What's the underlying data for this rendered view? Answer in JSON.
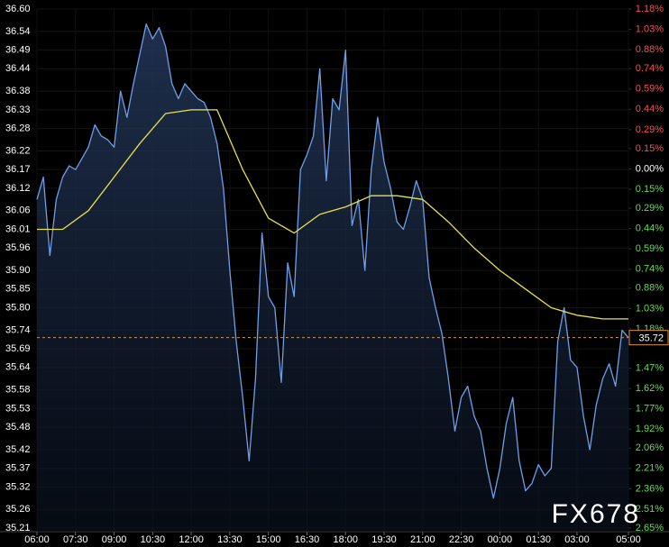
{
  "chart_data": {
    "type": "line",
    "xlim": [
      0,
      23
    ],
    "xticks": [
      {
        "value": 0,
        "label": "06:00"
      },
      {
        "value": 1.5,
        "label": "07:30"
      },
      {
        "value": 3,
        "label": "09:00"
      },
      {
        "value": 4.5,
        "label": "10:30"
      },
      {
        "value": 6,
        "label": "12:00"
      },
      {
        "value": 7.5,
        "label": "13:30"
      },
      {
        "value": 9,
        "label": "15:00"
      },
      {
        "value": 10.5,
        "label": "16:30"
      },
      {
        "value": 12,
        "label": "18:00"
      },
      {
        "value": 13.5,
        "label": "19:30"
      },
      {
        "value": 15,
        "label": "21:00"
      },
      {
        "value": 16.5,
        "label": "22:30"
      },
      {
        "value": 18,
        "label": "00:00"
      },
      {
        "value": 19.5,
        "label": "01:30"
      },
      {
        "value": 21,
        "label": "03:00"
      },
      {
        "value": 23,
        "label": "05:00"
      }
    ],
    "ylim": [
      35.21,
      36.6
    ],
    "yticks": [
      {
        "value": 36.6,
        "label": "36.60"
      },
      36.54,
      36.49,
      36.44,
      36.38,
      36.33,
      36.28,
      36.22,
      36.17,
      36.12,
      36.06,
      36.01,
      35.96,
      {
        "value": 35.9,
        "label": "35.90"
      },
      35.85,
      {
        "value": 35.8,
        "label": "35.80"
      },
      35.74,
      35.69,
      35.64,
      35.58,
      35.53,
      35.48,
      35.42,
      35.37,
      35.32,
      35.26,
      35.21
    ],
    "y2lim": [
      -2.65,
      1.18
    ],
    "y2ticks": [
      {
        "value": 1.18,
        "label": "1.18%"
      },
      {
        "value": 1.03,
        "label": "1.03%"
      },
      {
        "value": 0.88,
        "label": "0.88%"
      },
      {
        "value": 0.74,
        "label": "0.74%"
      },
      {
        "value": 0.59,
        "label": "0.59%"
      },
      {
        "value": 0.44,
        "label": "0.44%"
      },
      {
        "value": 0.29,
        "label": "0.29%"
      },
      {
        "value": 0.15,
        "label": "0.15%"
      },
      {
        "value": 0,
        "label": "0.00%"
      },
      {
        "value": -0.15,
        "label": "0.15%"
      },
      {
        "value": -0.29,
        "label": "0.29%"
      },
      {
        "value": -0.44,
        "label": "0.44%"
      },
      {
        "value": -0.59,
        "label": "0.59%"
      },
      {
        "value": -0.74,
        "label": "0.74%"
      },
      {
        "value": -0.88,
        "label": "0.88%"
      },
      {
        "value": -1.03,
        "label": "1.03%"
      },
      {
        "value": -1.18,
        "label": "1.18%"
      },
      {
        "value": -1.47,
        "label": "1.47%"
      },
      {
        "value": -1.62,
        "label": "1.62%"
      },
      {
        "value": -1.77,
        "label": "1.77%"
      },
      {
        "value": -1.92,
        "label": "1.92%"
      },
      {
        "value": -2.06,
        "label": "2.06%"
      },
      {
        "value": -2.21,
        "label": "2.21%"
      },
      {
        "value": -2.36,
        "label": "2.36%"
      },
      {
        "value": -2.51,
        "label": "2.51%"
      },
      {
        "value": -2.65,
        "label": "2.65%"
      }
    ],
    "grid": true,
    "current_price": 35.72,
    "watermark": "FX678",
    "series": [
      {
        "color": "#6f9fe8",
        "area": true,
        "x": [
          0,
          0.25,
          0.5,
          0.75,
          1,
          1.25,
          1.5,
          1.75,
          2,
          2.25,
          2.5,
          2.75,
          3,
          3.25,
          3.5,
          3.75,
          4,
          4.25,
          4.5,
          4.75,
          5,
          5.25,
          5.5,
          5.75,
          6,
          6.25,
          6.5,
          6.75,
          7,
          7.25,
          7.5,
          7.75,
          8,
          8.25,
          8.5,
          8.75,
          9,
          9.25,
          9.5,
          9.75,
          10,
          10.25,
          10.5,
          10.75,
          11,
          11.25,
          11.5,
          11.75,
          12,
          12.25,
          12.5,
          12.75,
          13,
          13.25,
          13.5,
          13.75,
          14,
          14.25,
          14.5,
          14.75,
          15,
          15.25,
          15.5,
          15.75,
          16,
          16.25,
          16.5,
          16.75,
          17,
          17.25,
          17.5,
          17.75,
          18,
          18.25,
          18.5,
          18.75,
          19,
          19.25,
          19.5,
          19.75,
          20,
          20.25,
          20.5,
          20.75,
          21,
          21.25,
          21.5,
          21.75,
          22,
          22.25,
          22.5,
          22.75,
          23
        ],
        "values": [
          36.09,
          36.15,
          35.94,
          36.09,
          36.15,
          36.18,
          36.17,
          36.2,
          36.23,
          36.29,
          36.26,
          36.25,
          36.23,
          36.38,
          36.31,
          36.4,
          36.48,
          36.56,
          36.52,
          36.55,
          36.5,
          36.4,
          36.36,
          36.4,
          36.38,
          36.36,
          36.35,
          36.31,
          36.24,
          36.12,
          35.9,
          35.71,
          35.56,
          35.39,
          35.61,
          36.0,
          35.83,
          35.8,
          35.6,
          35.92,
          35.83,
          36.17,
          36.21,
          36.26,
          36.44,
          36.14,
          36.36,
          36.33,
          36.49,
          36.02,
          36.09,
          35.9,
          36.17,
          36.31,
          36.19,
          36.12,
          36.03,
          36.01,
          36.07,
          36.14,
          36.09,
          35.88,
          35.8,
          35.73,
          35.61,
          35.47,
          35.56,
          35.59,
          35.51,
          35.47,
          35.37,
          35.29,
          35.37,
          35.49,
          35.56,
          35.39,
          35.31,
          35.33,
          35.38,
          35.35,
          35.37,
          35.71,
          35.8,
          35.66,
          35.64,
          35.51,
          35.42,
          35.54,
          35.61,
          35.65,
          35.59,
          35.74,
          35.72
        ]
      },
      {
        "color": "#e8e04a",
        "x": [
          0,
          1,
          2,
          3,
          4,
          5,
          6,
          7,
          8,
          9,
          10,
          11,
          12,
          13,
          14,
          15,
          16,
          17,
          18,
          19,
          20,
          21,
          22,
          23
        ],
        "values": [
          36.01,
          36.01,
          36.06,
          36.15,
          36.24,
          36.32,
          36.33,
          36.33,
          36.17,
          36.04,
          36.0,
          36.05,
          36.07,
          36.1,
          36.1,
          36.09,
          36.03,
          35.96,
          35.9,
          35.85,
          35.8,
          35.78,
          35.77,
          35.77
        ]
      }
    ]
  }
}
